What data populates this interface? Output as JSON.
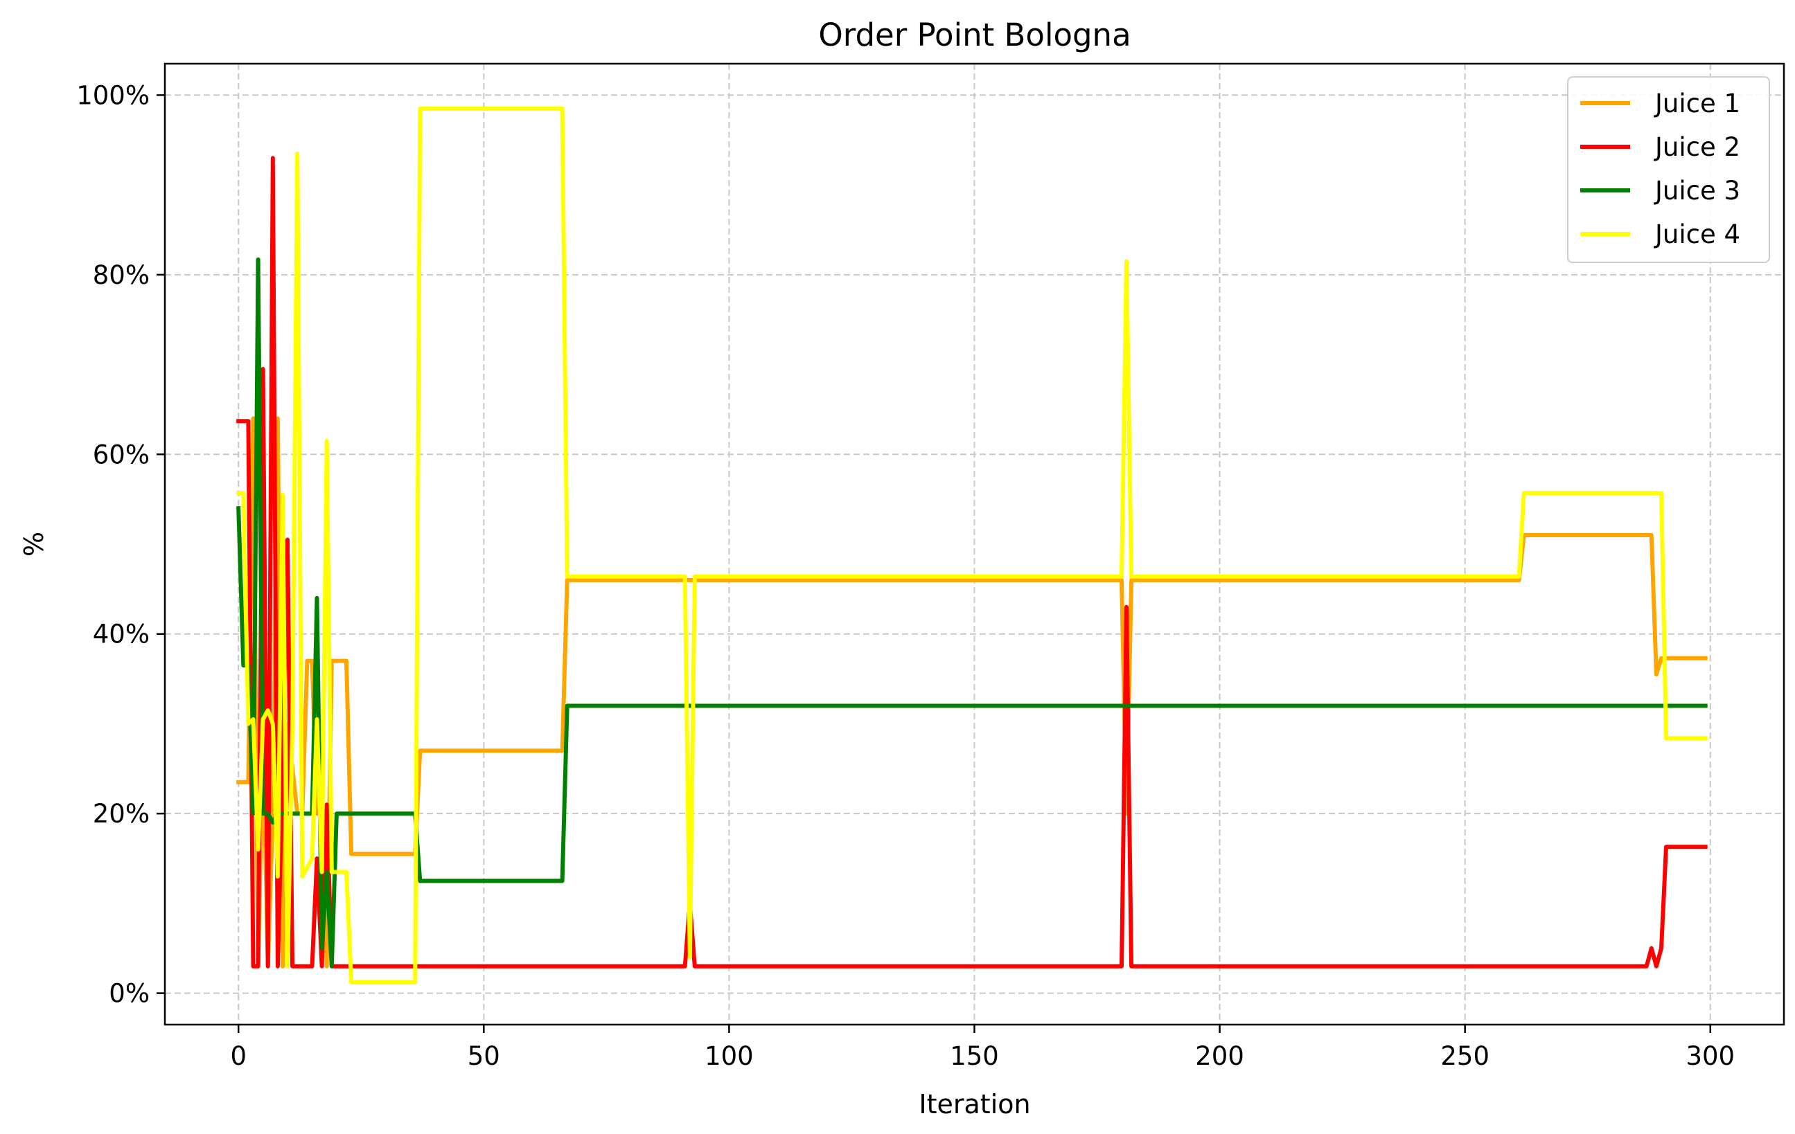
{
  "chart_data": {
    "type": "line",
    "title": "Order Point Bologna",
    "xlabel": "Iteration",
    "ylabel": "%",
    "xlim": [
      -15,
      315
    ],
    "ylim": [
      -3.5,
      103.5
    ],
    "x_ticks": [
      0,
      50,
      100,
      150,
      200,
      250,
      300
    ],
    "x_tick_labels": [
      "0",
      "50",
      "100",
      "150",
      "200",
      "250",
      "300"
    ],
    "y_ticks": [
      0,
      20,
      40,
      60,
      80,
      100
    ],
    "y_tick_labels": [
      "0%",
      "20%",
      "40%",
      "60%",
      "80%",
      "100%"
    ],
    "grid": true,
    "legend_position": "top-right",
    "series": [
      {
        "name": "Juice 1",
        "color": "#FFA500",
        "points": [
          [
            0,
            23.5
          ],
          [
            1,
            23.5
          ],
          [
            2,
            23.5
          ],
          [
            3,
            64
          ],
          [
            4,
            3
          ],
          [
            5,
            29
          ],
          [
            6,
            3
          ],
          [
            7,
            20
          ],
          [
            8,
            64
          ],
          [
            9,
            3
          ],
          [
            10,
            30
          ],
          [
            11,
            25
          ],
          [
            12,
            20
          ],
          [
            13,
            20
          ],
          [
            14,
            37
          ],
          [
            15,
            37
          ],
          [
            16,
            20
          ],
          [
            17,
            20
          ],
          [
            18,
            3
          ],
          [
            19,
            37
          ],
          [
            22,
            37
          ],
          [
            23,
            15.5
          ],
          [
            36,
            15.5
          ],
          [
            37,
            27
          ],
          [
            66,
            27
          ],
          [
            67,
            46
          ],
          [
            180,
            46
          ],
          [
            181,
            20
          ],
          [
            182,
            46
          ],
          [
            261,
            46
          ],
          [
            262,
            51
          ],
          [
            288,
            51
          ],
          [
            289,
            35.5
          ],
          [
            290,
            37.3
          ],
          [
            299,
            37.3
          ]
        ]
      },
      {
        "name": "Juice 2",
        "color": "#FF0000",
        "points": [
          [
            0,
            63.7
          ],
          [
            2,
            63.7
          ],
          [
            3,
            3
          ],
          [
            4,
            3
          ],
          [
            5,
            69.5
          ],
          [
            6,
            3
          ],
          [
            7,
            93
          ],
          [
            8,
            3
          ],
          [
            9,
            25
          ],
          [
            10,
            50.5
          ],
          [
            11,
            3
          ],
          [
            12,
            3
          ],
          [
            13,
            3
          ],
          [
            14,
            3
          ],
          [
            15,
            3
          ],
          [
            16,
            15
          ],
          [
            17,
            3
          ],
          [
            18,
            21
          ],
          [
            19,
            3
          ],
          [
            91,
            3
          ],
          [
            92,
            10
          ],
          [
            93,
            3
          ],
          [
            180,
            3
          ],
          [
            181,
            43
          ],
          [
            182,
            3
          ],
          [
            287,
            3
          ],
          [
            288,
            5
          ],
          [
            289,
            3
          ],
          [
            290,
            5
          ],
          [
            291,
            16.3
          ],
          [
            299,
            16.3
          ]
        ]
      },
      {
        "name": "Juice 3",
        "color": "#008000",
        "points": [
          [
            0,
            54
          ],
          [
            1,
            36.5
          ],
          [
            2,
            36.5
          ],
          [
            3,
            20
          ],
          [
            4,
            81.7
          ],
          [
            5,
            20
          ],
          [
            6,
            20
          ],
          [
            7,
            19
          ],
          [
            8,
            20
          ],
          [
            9,
            20
          ],
          [
            10,
            20
          ],
          [
            11,
            20
          ],
          [
            12,
            20
          ],
          [
            13,
            20
          ],
          [
            14,
            20
          ],
          [
            15,
            20
          ],
          [
            16,
            44
          ],
          [
            17,
            5
          ],
          [
            18,
            13.5
          ],
          [
            19,
            3
          ],
          [
            20,
            20
          ],
          [
            36,
            20
          ],
          [
            37,
            12.5
          ],
          [
            66,
            12.5
          ],
          [
            67,
            32
          ],
          [
            299,
            32
          ]
        ]
      },
      {
        "name": "Juice 4",
        "color": "#FFFF00",
        "points": [
          [
            0,
            55.7
          ],
          [
            1,
            55.7
          ],
          [
            2,
            30
          ],
          [
            3,
            30.5
          ],
          [
            4,
            16
          ],
          [
            5,
            30.5
          ],
          [
            6,
            31.5
          ],
          [
            7,
            30
          ],
          [
            8,
            13
          ],
          [
            9,
            55.5
          ],
          [
            10,
            3
          ],
          [
            11,
            30
          ],
          [
            12,
            93.5
          ],
          [
            13,
            13
          ],
          [
            14,
            14
          ],
          [
            15,
            15
          ],
          [
            16,
            30.5
          ],
          [
            17,
            13.5
          ],
          [
            18,
            61.5
          ],
          [
            19,
            13.5
          ],
          [
            22,
            13.5
          ],
          [
            23,
            1.2
          ],
          [
            36,
            1.2
          ],
          [
            37,
            98.5
          ],
          [
            66,
            98.5
          ],
          [
            67,
            46.4
          ],
          [
            91,
            46.4
          ],
          [
            92,
            4
          ],
          [
            93,
            46.4
          ],
          [
            180,
            46.4
          ],
          [
            181,
            81.5
          ],
          [
            182,
            46.4
          ],
          [
            261,
            46.4
          ],
          [
            262,
            55.7
          ],
          [
            290,
            55.7
          ],
          [
            291,
            28.4
          ],
          [
            299,
            28.4
          ]
        ]
      }
    ]
  }
}
